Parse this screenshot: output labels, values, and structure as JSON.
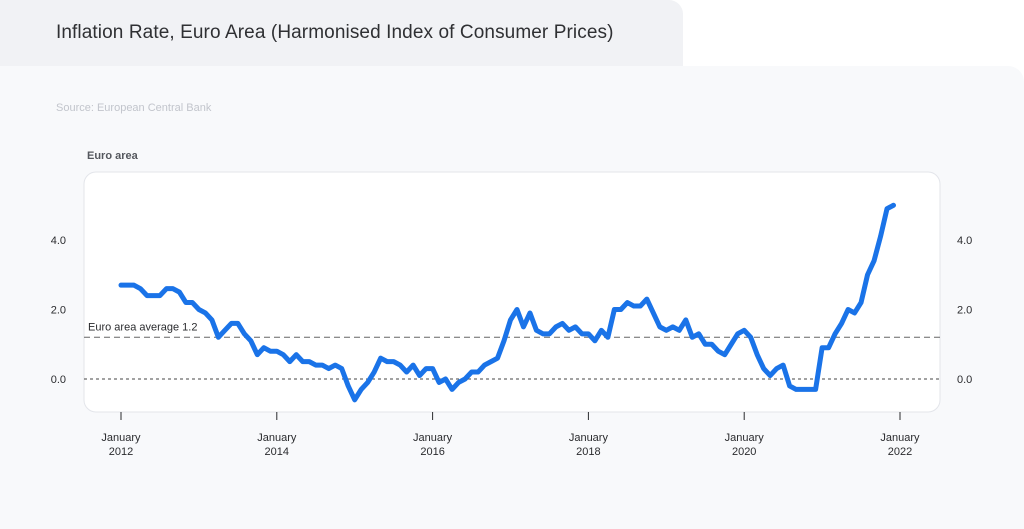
{
  "header": {
    "title": "Inflation Rate, Euro Area (Harmonised Index of Consumer Prices)"
  },
  "source": "Source: European Central Bank",
  "chart_data": {
    "type": "line",
    "title": "Inflation Rate, Euro Area (Harmonised Index of Consumer Prices)",
    "series_heading": "Euro area",
    "ylim": [
      -0.8,
      5.9
    ],
    "y_ticks": [
      "0.0",
      "2.0",
      "4.0"
    ],
    "y_tick_values": [
      0,
      2,
      4
    ],
    "x_ticks": [
      {
        "month": 0,
        "line1": "January",
        "line2": "2012"
      },
      {
        "month": 24,
        "line1": "January",
        "line2": "2014"
      },
      {
        "month": 48,
        "line1": "January",
        "line2": "2016"
      },
      {
        "month": 72,
        "line1": "January",
        "line2": "2018"
      },
      {
        "month": 96,
        "line1": "January",
        "line2": "2020"
      },
      {
        "month": 120,
        "line1": "January",
        "line2": "2022"
      }
    ],
    "reference_line": {
      "label": "Euro area average 1.2",
      "value": 1.2
    },
    "zero_line": 0,
    "line_color": "#1a73e8",
    "x_start": "January 2012",
    "series": [
      {
        "values": [
          2.7,
          2.7,
          2.7,
          2.6,
          2.4,
          2.4,
          2.4,
          2.6,
          2.6,
          2.5,
          2.2,
          2.2,
          2.0,
          1.9,
          1.7,
          1.2,
          1.4,
          1.6,
          1.6,
          1.3,
          1.1,
          0.7,
          0.9,
          0.8,
          0.8,
          0.7,
          0.5,
          0.7,
          0.5,
          0.5,
          0.4,
          0.4,
          0.3,
          0.4,
          0.3,
          -0.2,
          -0.6,
          -0.3,
          -0.1,
          0.2,
          0.6,
          0.5,
          0.5,
          0.4,
          0.2,
          0.4,
          0.1,
          0.3,
          0.3,
          -0.1,
          0.0,
          -0.3,
          -0.1,
          0.0,
          0.2,
          0.2,
          0.4,
          0.5,
          0.6,
          1.1,
          1.7,
          2.0,
          1.5,
          1.9,
          1.4,
          1.3,
          1.3,
          1.5,
          1.6,
          1.4,
          1.5,
          1.3,
          1.3,
          1.1,
          1.4,
          1.2,
          2.0,
          2.0,
          2.2,
          2.1,
          2.1,
          2.3,
          1.9,
          1.5,
          1.4,
          1.5,
          1.4,
          1.7,
          1.2,
          1.3,
          1.0,
          1.0,
          0.8,
          0.7,
          1.0,
          1.3,
          1.4,
          1.2,
          0.7,
          0.3,
          0.1,
          0.3,
          0.4,
          -0.2,
          -0.3,
          -0.3,
          -0.3,
          -0.3,
          0.9,
          0.9,
          1.3,
          1.6,
          2.0,
          1.9,
          2.2,
          3.0,
          3.4,
          4.1,
          4.9,
          5.0
        ]
      }
    ]
  }
}
